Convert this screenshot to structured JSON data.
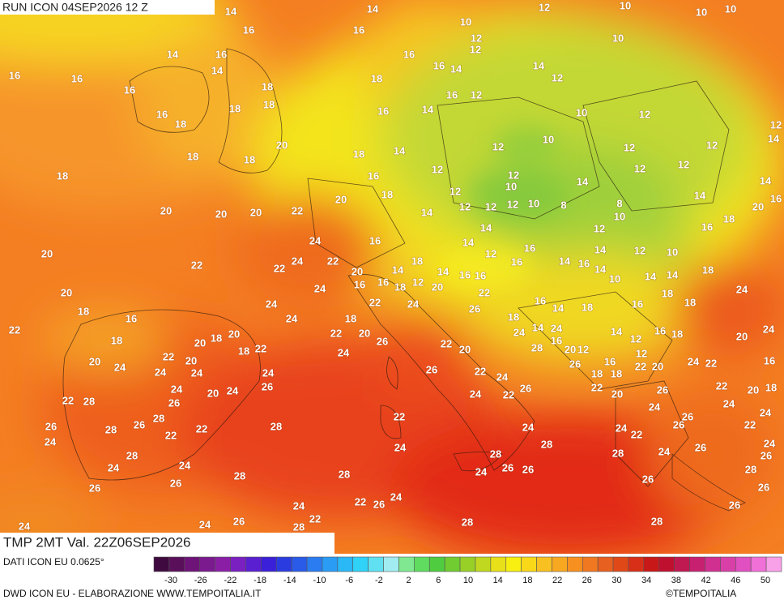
{
  "header": {
    "run": "RUN ICON 04SEP2026 12 Z",
    "variable": "TMP 2MT Val. 22Z06SEP2026"
  },
  "footer": {
    "source": "DATI ICON EU 0.0625°",
    "credit": "DWD ICON EU - ELABORAZIONE WWW.TEMPOITALIA.IT",
    "brand": "©TEMPOITALIA"
  },
  "colorbar": {
    "ticks": [
      -30,
      -26,
      -22,
      -18,
      -14,
      -10,
      -6,
      -2,
      2,
      6,
      10,
      14,
      18,
      22,
      26,
      30,
      34,
      38,
      42,
      46,
      50
    ],
    "colors": [
      "#3f0a3f",
      "#5a0f5a",
      "#6e1478",
      "#7a1a8e",
      "#8a1fa6",
      "#7a1fc0",
      "#5a1fd0",
      "#3a20d8",
      "#2a3ce0",
      "#2a5ae8",
      "#2a7cf0",
      "#2a9cf4",
      "#2ab8f6",
      "#30d2f8",
      "#60e0f0",
      "#a0ecf0",
      "#80e890",
      "#60dc60",
      "#50cc40",
      "#70cc30",
      "#98d028",
      "#c0d820",
      "#e8e018",
      "#f8f010",
      "#f8d818",
      "#f8c020",
      "#f8a820",
      "#f89020",
      "#f07820",
      "#e86020",
      "#e04818",
      "#d83018",
      "#c81818",
      "#c01030",
      "#c01850",
      "#c82070",
      "#d03090",
      "#d840a8",
      "#e050c0",
      "#f070d8",
      "#f8a0e8"
    ]
  },
  "map": {
    "labels": [
      14,
      14,
      12,
      10,
      10,
      10,
      16,
      16,
      10,
      12,
      10,
      14,
      16,
      16,
      16,
      12,
      14,
      16,
      16,
      14,
      18,
      18,
      14,
      12,
      16,
      18,
      18,
      16,
      12,
      16,
      14,
      10,
      12,
      12,
      16,
      18,
      10,
      12,
      12,
      12,
      14,
      18,
      18,
      20,
      18,
      14,
      12,
      12,
      18,
      16,
      12,
      12,
      14,
      18,
      12,
      10,
      14,
      14,
      16,
      20,
      20,
      20,
      20,
      22,
      20,
      14,
      12,
      12,
      12,
      10,
      8,
      8,
      10,
      18,
      14,
      12,
      16,
      24,
      16,
      14,
      12,
      16,
      14,
      16,
      14,
      14,
      12,
      10,
      20,
      22,
      22,
      24,
      22,
      20,
      14,
      18,
      14,
      16,
      16,
      16,
      18,
      16,
      16,
      18,
      12,
      20,
      22,
      10,
      14,
      14,
      20,
      24,
      22,
      24,
      16,
      14,
      18,
      16,
      18,
      18,
      24,
      18,
      16,
      24,
      26,
      18,
      18,
      22,
      18,
      20,
      18,
      20,
      24,
      22,
      20,
      26,
      22,
      24,
      14,
      24,
      14,
      12,
      16,
      18,
      20,
      24,
      18,
      22,
      24,
      20,
      28,
      16,
      20,
      12,
      12,
      20,
      24,
      22,
      20,
      16,
      24,
      22,
      16,
      24,
      24,
      24,
      26,
      22,
      26,
      18,
      18,
      22,
      20,
      24,
      20,
      24,
      26,
      24,
      26,
      22,
      20,
      26,
      22,
      20,
      18,
      22,
      28,
      26,
      24,
      22,
      24,
      28,
      22,
      24,
      26,
      24,
      22,
      26,
      28,
      26,
      22,
      22,
      28,
      24,
      24,
      22,
      26,
      24,
      28,
      24,
      28,
      26,
      24,
      24,
      24,
      28,
      28,
      24,
      26,
      28,
      24,
      26,
      26,
      26,
      26,
      28,
      28,
      26,
      26,
      24,
      24,
      22,
      26,
      26,
      24,
      24,
      26,
      22,
      28,
      28,
      28
    ]
  }
}
